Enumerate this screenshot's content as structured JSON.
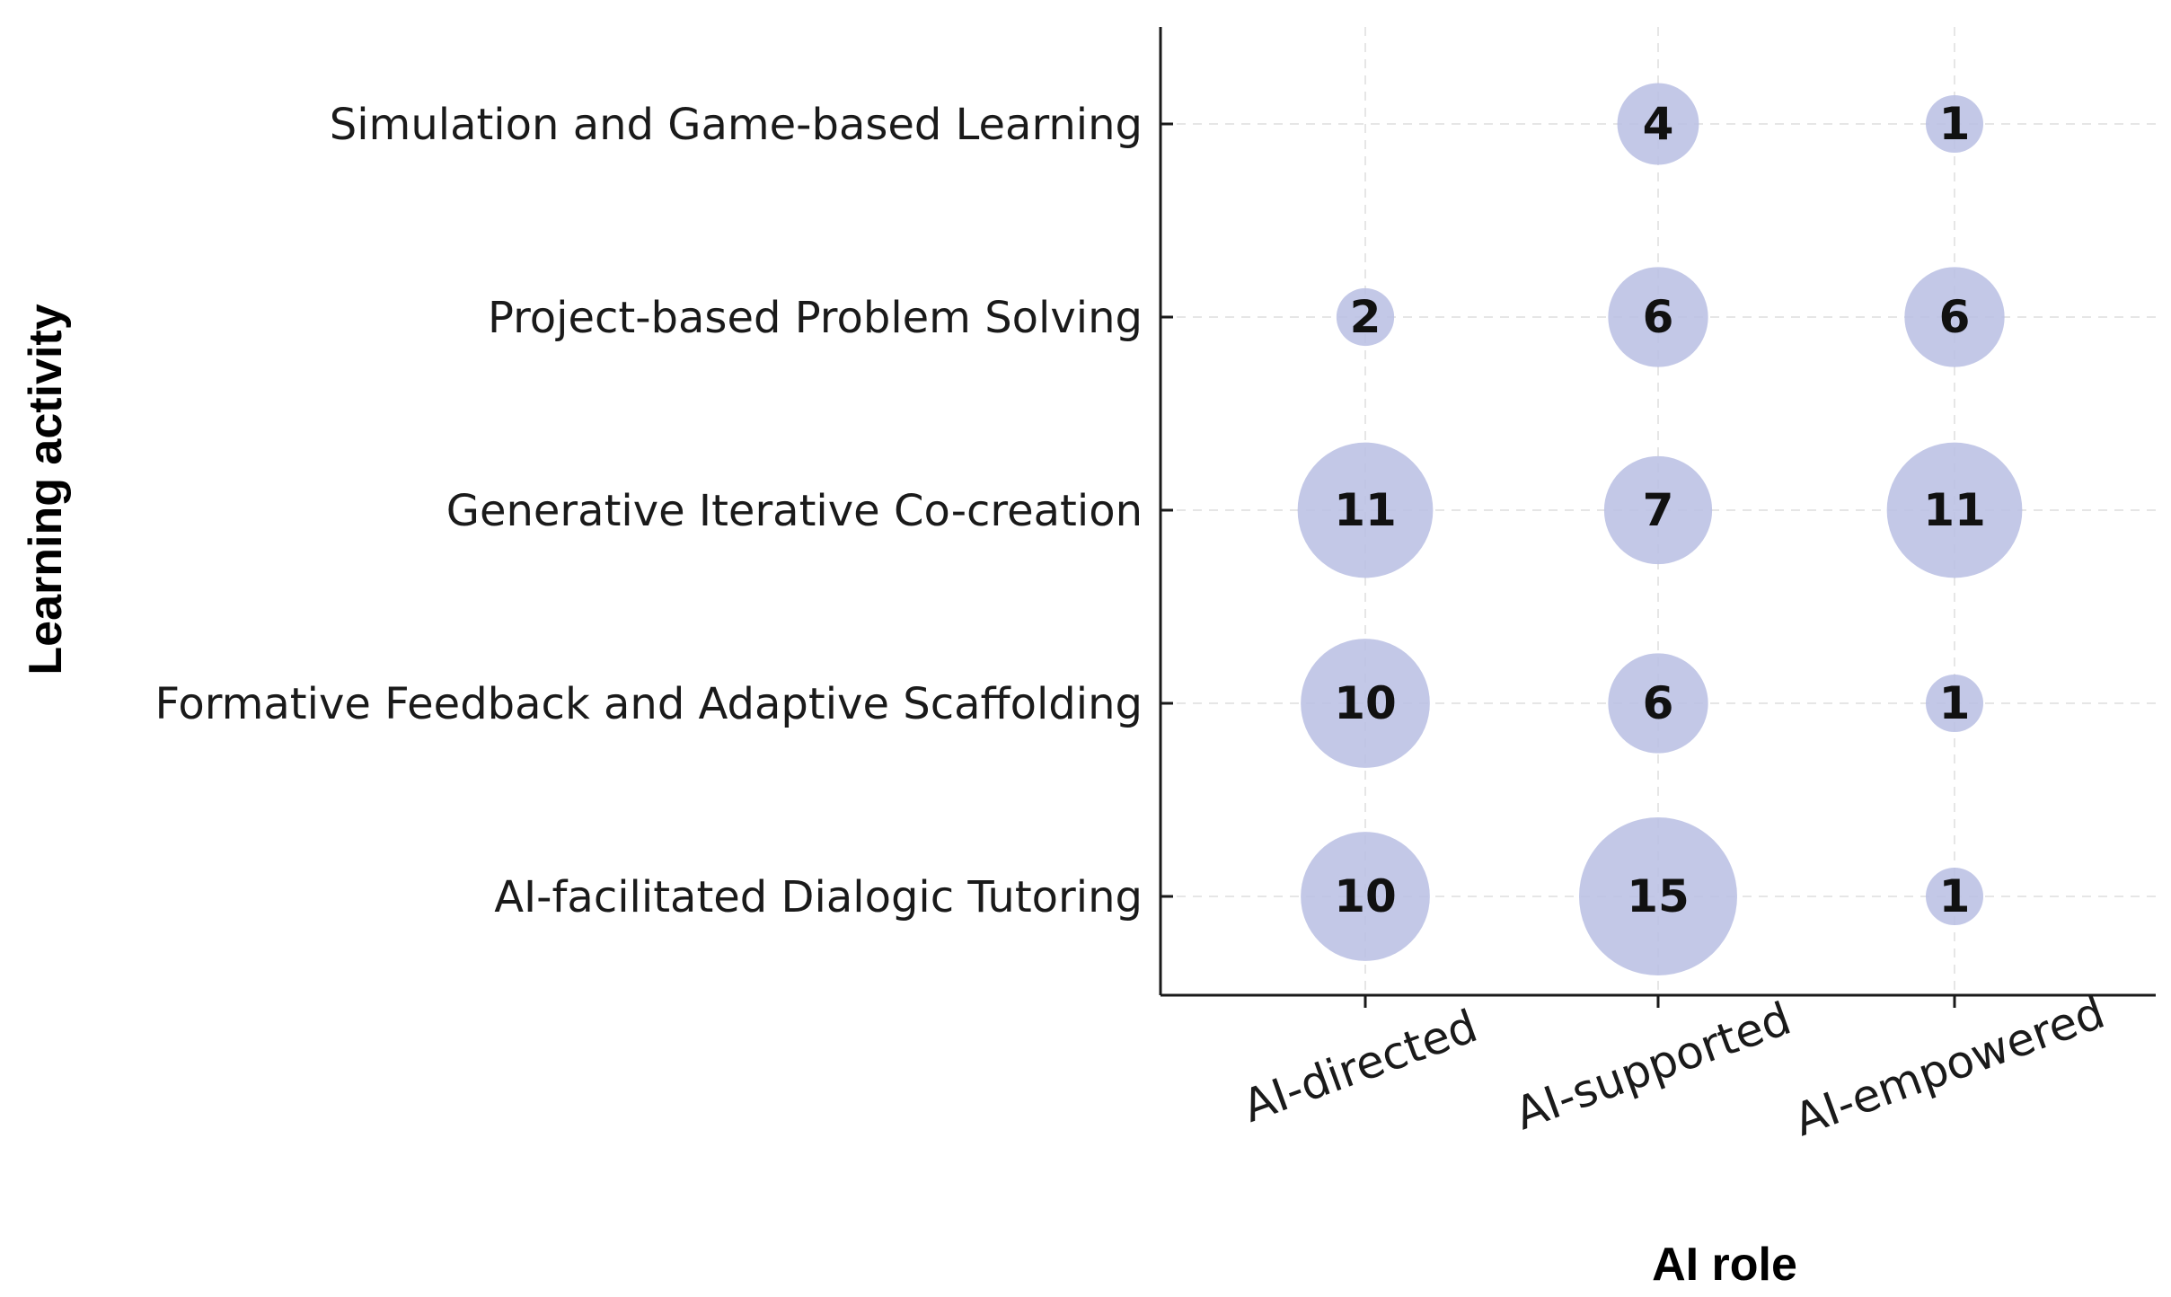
{
  "chart_data": {
    "type": "scatter",
    "subtype": "bubble",
    "xlabel": "AI role",
    "ylabel": "Learning activity",
    "x_categories": [
      "AI-directed",
      "AI-supported",
      "AI-empowered"
    ],
    "y_categories": [
      "AI-facilitated Dialogic Tutoring",
      "Formative Feedback and Adaptive Scaffolding",
      "Generative Iterative Co-creation",
      "Project-based Problem Solving",
      "Simulation and Game-based Learning"
    ],
    "points": [
      {
        "x": "AI-directed",
        "y": "AI-facilitated Dialogic Tutoring",
        "value": 10
      },
      {
        "x": "AI-supported",
        "y": "AI-facilitated Dialogic Tutoring",
        "value": 15
      },
      {
        "x": "AI-empowered",
        "y": "AI-facilitated Dialogic Tutoring",
        "value": 1
      },
      {
        "x": "AI-directed",
        "y": "Formative Feedback and Adaptive Scaffolding",
        "value": 10
      },
      {
        "x": "AI-supported",
        "y": "Formative Feedback and Adaptive Scaffolding",
        "value": 6
      },
      {
        "x": "AI-empowered",
        "y": "Formative Feedback and Adaptive Scaffolding",
        "value": 1
      },
      {
        "x": "AI-directed",
        "y": "Generative Iterative Co-creation",
        "value": 11
      },
      {
        "x": "AI-supported",
        "y": "Generative Iterative Co-creation",
        "value": 7
      },
      {
        "x": "AI-empowered",
        "y": "Generative Iterative Co-creation",
        "value": 11
      },
      {
        "x": "AI-directed",
        "y": "Project-based Problem Solving",
        "value": 2
      },
      {
        "x": "AI-supported",
        "y": "Project-based Problem Solving",
        "value": 6
      },
      {
        "x": "AI-empowered",
        "y": "Project-based Problem Solving",
        "value": 6
      },
      {
        "x": "AI-supported",
        "y": "Simulation and Game-based Learning",
        "value": 4
      },
      {
        "x": "AI-empowered",
        "y": "Simulation and Game-based Learning",
        "value": 1
      }
    ],
    "bubble_color": "#b9bee3",
    "grid": true,
    "legend": "none"
  }
}
